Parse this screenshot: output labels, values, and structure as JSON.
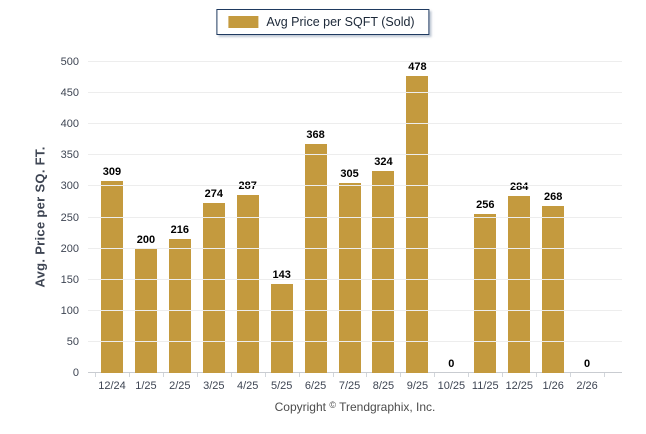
{
  "legend": {
    "label": "Avg Price per SQFT (Sold)",
    "swatch_icon": "gold-square-icon"
  },
  "copyright": {
    "prefix": "Copyright",
    "symbol": "©",
    "company": "Trendgraphix, Inc."
  },
  "chart_data": {
    "type": "bar",
    "title": "",
    "categories": [
      "12/24",
      "1/25",
      "2/25",
      "3/25",
      "4/25",
      "5/25",
      "6/25",
      "7/25",
      "8/25",
      "9/25",
      "10/25",
      "11/25",
      "12/25",
      "1/26",
      "2/26"
    ],
    "values": [
      309,
      200,
      216,
      274,
      287,
      143,
      368,
      305,
      324,
      478,
      0,
      256,
      284,
      268,
      0
    ],
    "series": [
      {
        "name": "Avg Price per SQFT (Sold)",
        "values": [
          309,
          200,
          216,
          274,
          287,
          143,
          368,
          305,
          324,
          478,
          0,
          256,
          284,
          268,
          0
        ]
      }
    ],
    "xlabel": "",
    "ylabel": "Avg. Price per SQ. FT.",
    "ylim": [
      0,
      500
    ],
    "ytick_step": 50,
    "grid": true,
    "value_labels": true,
    "legend_position": "top-center",
    "colors": {
      "bar": "#c49a3e",
      "legend_border": "#1f3a60",
      "grid_line": "#ededed",
      "axis_line": "#c9ccd1",
      "axis_text": "#3e4553",
      "value_label": "#000000",
      "background": "#ffffff"
    }
  }
}
